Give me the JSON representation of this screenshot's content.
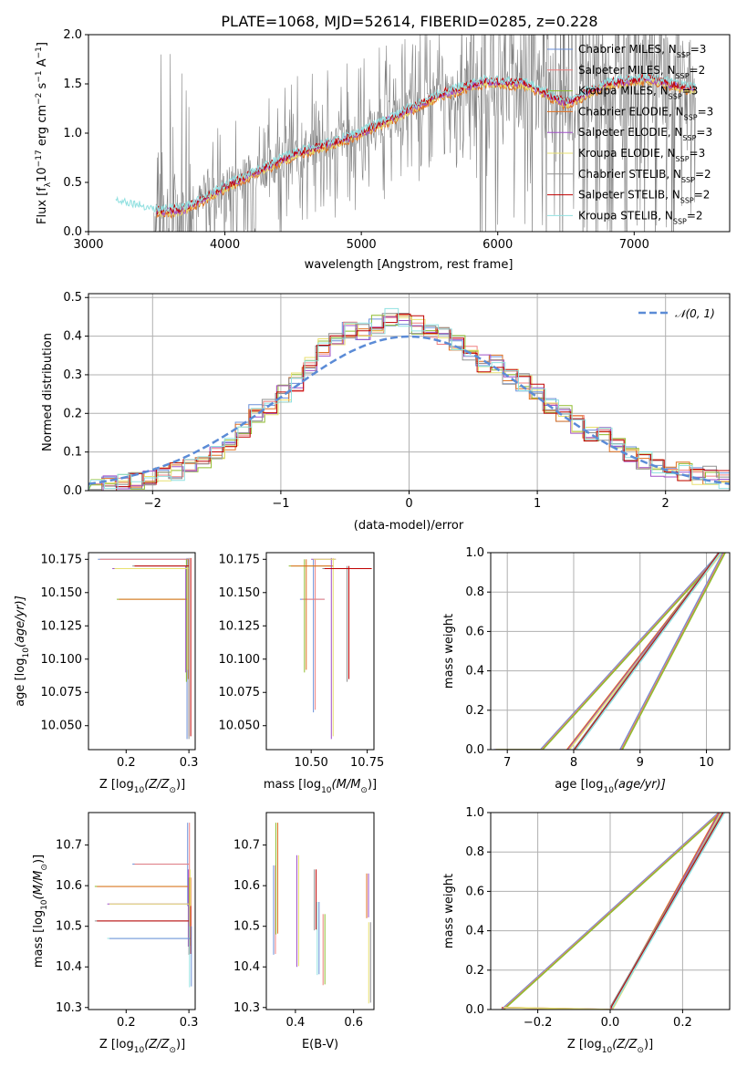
{
  "figure_title": "PLATE=1068, MJD=52614, FIBERID=0285, z=0.228",
  "palette": [
    "#6a8fd8",
    "#f08080",
    "#8fbc2f",
    "#e07020",
    "#a050c8",
    "#e8e070",
    "#909090",
    "#c00000",
    "#90e0e0"
  ],
  "chart_data": [
    {
      "id": "spectrum",
      "type": "line",
      "xlabel": "wavelength [Angstrom, rest frame]",
      "ylabel": "Flux [f",
      "ylabel_sub": "λ",
      "ylabel_rest": "10",
      "ylabel_exp": "−17",
      "ylabel_units": " erg cm",
      "ylabel_units_exp": "−2",
      "ylabel_units2": " s",
      "ylabel_units2_exp": "−1",
      "ylabel_units3": " A",
      "ylabel_units3_exp": "−1",
      "ylabel_end": "]",
      "xlim": [
        3000,
        7700
      ],
      "ylim": [
        0,
        2.0
      ],
      "xticks": [
        "3000",
        "4000",
        "5000",
        "6000",
        "7000"
      ],
      "yticks": [
        "0.0",
        "0.5",
        "1.0",
        "1.5",
        "2.0"
      ],
      "legend": [
        {
          "name": "Chabrier MILES, N",
          "sub": "SSP",
          "tail": "=3"
        },
        {
          "name": "Salpeter MILES, N",
          "sub": "SSP",
          "tail": "=2"
        },
        {
          "name": "Kroupa MILES, N",
          "sub": "SSP",
          "tail": "=3"
        },
        {
          "name": "Chabrier ELODIE, N",
          "sub": "SSP",
          "tail": "=3"
        },
        {
          "name": "Salpeter ELODIE, N",
          "sub": "SSP",
          "tail": "=3"
        },
        {
          "name": "Kroupa ELODIE, N",
          "sub": "SSP",
          "tail": "=3"
        },
        {
          "name": "Chabrier STELIB, N",
          "sub": "SSP",
          "tail": "=2"
        },
        {
          "name": "Salpeter STELIB, N",
          "sub": "SSP",
          "tail": "=2"
        },
        {
          "name": "Kroupa STELIB, N",
          "sub": "SSP",
          "tail": "=2"
        }
      ],
      "model_continuum": [
        [
          3200,
          0.3
        ],
        [
          3500,
          0.2
        ],
        [
          3700,
          0.22
        ],
        [
          4000,
          0.45
        ],
        [
          4300,
          0.65
        ],
        [
          4500,
          0.78
        ],
        [
          4800,
          0.9
        ],
        [
          5000,
          1.0
        ],
        [
          5300,
          1.2
        ],
        [
          5600,
          1.4
        ],
        [
          5900,
          1.52
        ],
        [
          6200,
          1.5
        ],
        [
          6500,
          1.3
        ],
        [
          6800,
          1.5
        ],
        [
          7100,
          1.55
        ],
        [
          7400,
          1.45
        ]
      ]
    },
    {
      "id": "residuals",
      "type": "bar",
      "xlabel": "(data-model)/error",
      "ylabel": "Normed distribution",
      "xlim": [
        -2.5,
        2.5
      ],
      "ylim": [
        0,
        0.51
      ],
      "xticks": [
        "−2",
        "−1",
        "0",
        "1",
        "2"
      ],
      "yticks": [
        "0.0",
        "0.1",
        "0.2",
        "0.3",
        "0.4",
        "0.5"
      ],
      "legend_label": "𝒩(0, 1)",
      "hist_envelope": [
        0.01,
        0.015,
        0.02,
        0.025,
        0.03,
        0.04,
        0.05,
        0.06,
        0.07,
        0.09,
        0.12,
        0.16,
        0.2,
        0.22,
        0.25,
        0.28,
        0.32,
        0.37,
        0.4,
        0.42,
        0.41,
        0.43,
        0.45,
        0.44,
        0.43,
        0.42,
        0.4,
        0.38,
        0.35,
        0.33,
        0.33,
        0.3,
        0.28,
        0.26,
        0.22,
        0.2,
        0.17,
        0.15,
        0.14,
        0.12,
        0.1,
        0.08,
        0.06,
        0.05,
        0.05,
        0.04,
        0.04,
        0.03
      ]
    },
    {
      "id": "age-vs-Z",
      "type": "scatter",
      "xlabel": "Z [log",
      "xlabel_sub": "10",
      "xlabel_rest": "(Z/Z",
      "xlabel_sun": "⊙",
      "xlabel_end": ")]",
      "ylabel": "age  [log",
      "ylabel_sub": "10",
      "ylabel_rest": "(age/yr)]",
      "xlim": [
        0.14,
        0.31
      ],
      "ylim": [
        10.032,
        10.18
      ],
      "xticks": [
        "0.2",
        "0.3"
      ],
      "yticks": [
        "10.050",
        "10.075",
        "10.100",
        "10.125",
        "10.150",
        "10.175"
      ],
      "bars": [
        {
          "x": 0.297,
          "y": 10.175,
          "xerr": [
            0.155,
            0.3
          ],
          "yerr": [
            10.04,
            10.176
          ]
        },
        {
          "x": 0.296,
          "y": 10.145,
          "xerr": [
            0.185,
            0.298
          ],
          "yerr": [
            10.083,
            10.175
          ]
        },
        {
          "x": 0.295,
          "y": 10.168,
          "xerr": [
            0.178,
            0.299
          ],
          "yerr": [
            10.09,
            10.17
          ]
        },
        {
          "x": 0.3,
          "y": 10.17,
          "xerr": [
            0.21,
            0.3
          ],
          "yerr": [
            10.04,
            10.176
          ]
        }
      ]
    },
    {
      "id": "age-vs-mass",
      "type": "scatter",
      "xlabel": "mass [log",
      "xlabel_sub": "10",
      "xlabel_rest": "(M/M",
      "xlabel_sun": "⊙",
      "xlabel_end": ")]",
      "xlim": [
        10.3,
        10.78
      ],
      "ylim": [
        10.032,
        10.18
      ],
      "xticks": [
        "10.50",
        "10.75"
      ],
      "yticks": [
        "10.050",
        "10.075",
        "10.100",
        "10.125",
        "10.150",
        "10.175"
      ],
      "bars": [
        {
          "x": 10.51,
          "y": 10.145,
          "xerr": [
            10.45,
            10.56
          ],
          "yerr": [
            10.06,
            10.175
          ]
        },
        {
          "x": 10.47,
          "y": 10.17,
          "xerr": [
            10.4,
            10.6
          ],
          "yerr": [
            10.09,
            10.175
          ]
        },
        {
          "x": 10.59,
          "y": 10.175,
          "xerr": [
            10.5,
            10.61
          ],
          "yerr": [
            10.04,
            10.176
          ]
        },
        {
          "x": 10.66,
          "y": 10.168,
          "xerr": [
            10.55,
            10.77
          ],
          "yerr": [
            10.083,
            10.17
          ]
        }
      ]
    },
    {
      "id": "cum-mass-age",
      "type": "line",
      "xlabel": "age  [log",
      "xlabel_sub": "10",
      "xlabel_rest": "(age/yr)]",
      "ylabel": "mass weight",
      "xlim": [
        6.75,
        10.35
      ],
      "ylim": [
        0,
        1.0
      ],
      "xticks": [
        "7",
        "8",
        "9",
        "10"
      ],
      "yticks": [
        "0.0",
        "0.2",
        "0.4",
        "0.6",
        "0.8",
        "1.0"
      ],
      "series": [
        {
          "values": [
            [
              6.8,
              0
            ],
            [
              7.5,
              0
            ],
            [
              10.2,
              1.0
            ]
          ]
        },
        {
          "values": [
            [
              7.9,
              0
            ],
            [
              10.2,
              1.0
            ]
          ]
        },
        {
          "values": [
            [
              8.0,
              0
            ],
            [
              10.18,
              1.0
            ]
          ]
        },
        {
          "values": [
            [
              8.7,
              0
            ],
            [
              10.25,
              1.0
            ]
          ]
        }
      ]
    },
    {
      "id": "mass-vs-Z",
      "type": "scatter",
      "xlabel": "Z [log",
      "xlabel_sub": "10",
      "xlabel_rest": "(Z/Z",
      "xlabel_sun": "⊙",
      "xlabel_end": ")]",
      "ylabel": "mass [log",
      "ylabel_sub": "10",
      "ylabel_rest": "(M/M",
      "ylabel_sun": "⊙",
      "ylabel_end": ")]",
      "xlim": [
        0.14,
        0.31
      ],
      "ylim": [
        10.295,
        10.78
      ],
      "xticks": [
        "0.2",
        "0.3"
      ],
      "yticks": [
        "10.3",
        "10.4",
        "10.5",
        "10.6",
        "10.7"
      ],
      "bars": [
        {
          "x": 0.298,
          "y": 10.653,
          "xerr": [
            0.21,
            0.3
          ],
          "yerr": [
            10.55,
            10.755
          ]
        },
        {
          "x": 0.3,
          "y": 10.598,
          "xerr": [
            0.15,
            0.3
          ],
          "yerr": [
            10.5,
            10.62
          ]
        },
        {
          "x": 0.299,
          "y": 10.555,
          "xerr": [
            0.17,
            0.3
          ],
          "yerr": [
            10.45,
            10.64
          ]
        },
        {
          "x": 0.3,
          "y": 10.513,
          "xerr": [
            0.15,
            0.3
          ],
          "yerr": [
            10.43,
            10.55
          ]
        },
        {
          "x": 0.301,
          "y": 10.47,
          "xerr": [
            0.17,
            0.302
          ],
          "yerr": [
            10.35,
            10.5
          ]
        }
      ]
    },
    {
      "id": "mass-vs-EBV",
      "type": "scatter",
      "xlabel": "E(B-V)",
      "xlim": [
        0.3,
        0.67
      ],
      "ylim": [
        10.295,
        10.78
      ],
      "xticks": [
        "0.4",
        "0.6"
      ],
      "yticks": [
        "10.3",
        "10.4",
        "10.5",
        "10.6",
        "10.7"
      ],
      "bars": [
        {
          "x": 0.325,
          "y": 10.53,
          "yerr": [
            10.43,
            10.65
          ]
        },
        {
          "x": 0.333,
          "y": 10.62,
          "yerr": [
            10.48,
            10.755
          ]
        },
        {
          "x": 0.405,
          "y": 10.55,
          "yerr": [
            10.4,
            10.675
          ]
        },
        {
          "x": 0.465,
          "y": 10.55,
          "yerr": [
            10.49,
            10.64
          ]
        },
        {
          "x": 0.475,
          "y": 10.47,
          "yerr": [
            10.38,
            10.56
          ]
        },
        {
          "x": 0.495,
          "y": 10.44,
          "yerr": [
            10.355,
            10.53
          ]
        },
        {
          "x": 0.645,
          "y": 10.57,
          "yerr": [
            10.52,
            10.63
          ]
        },
        {
          "x": 0.652,
          "y": 10.41,
          "yerr": [
            10.31,
            10.51
          ]
        }
      ]
    },
    {
      "id": "cum-mass-Z",
      "type": "line",
      "xlabel": "Z [log",
      "xlabel_sub": "10",
      "xlabel_rest": "(Z/Z",
      "xlabel_sun": "⊙",
      "xlabel_end": ")]",
      "ylabel": "mass weight",
      "xlim": [
        -0.33,
        0.33
      ],
      "ylim": [
        0,
        1.0
      ],
      "xticks": [
        "−0.2",
        "0.0",
        "0.2"
      ],
      "yticks": [
        "0.0",
        "0.2",
        "0.4",
        "0.6",
        "0.8",
        "1.0"
      ],
      "series": [
        {
          "values": [
            [
              -0.3,
              0
            ],
            [
              0.3,
              1.0
            ]
          ]
        },
        {
          "values": [
            [
              -0.3,
              0.01
            ],
            [
              0.0,
              0
            ],
            [
              0.3,
              1.0
            ]
          ]
        },
        {
          "values": [
            [
              0.0,
              0.01
            ],
            [
              0.31,
              1.0
            ]
          ]
        }
      ]
    }
  ]
}
